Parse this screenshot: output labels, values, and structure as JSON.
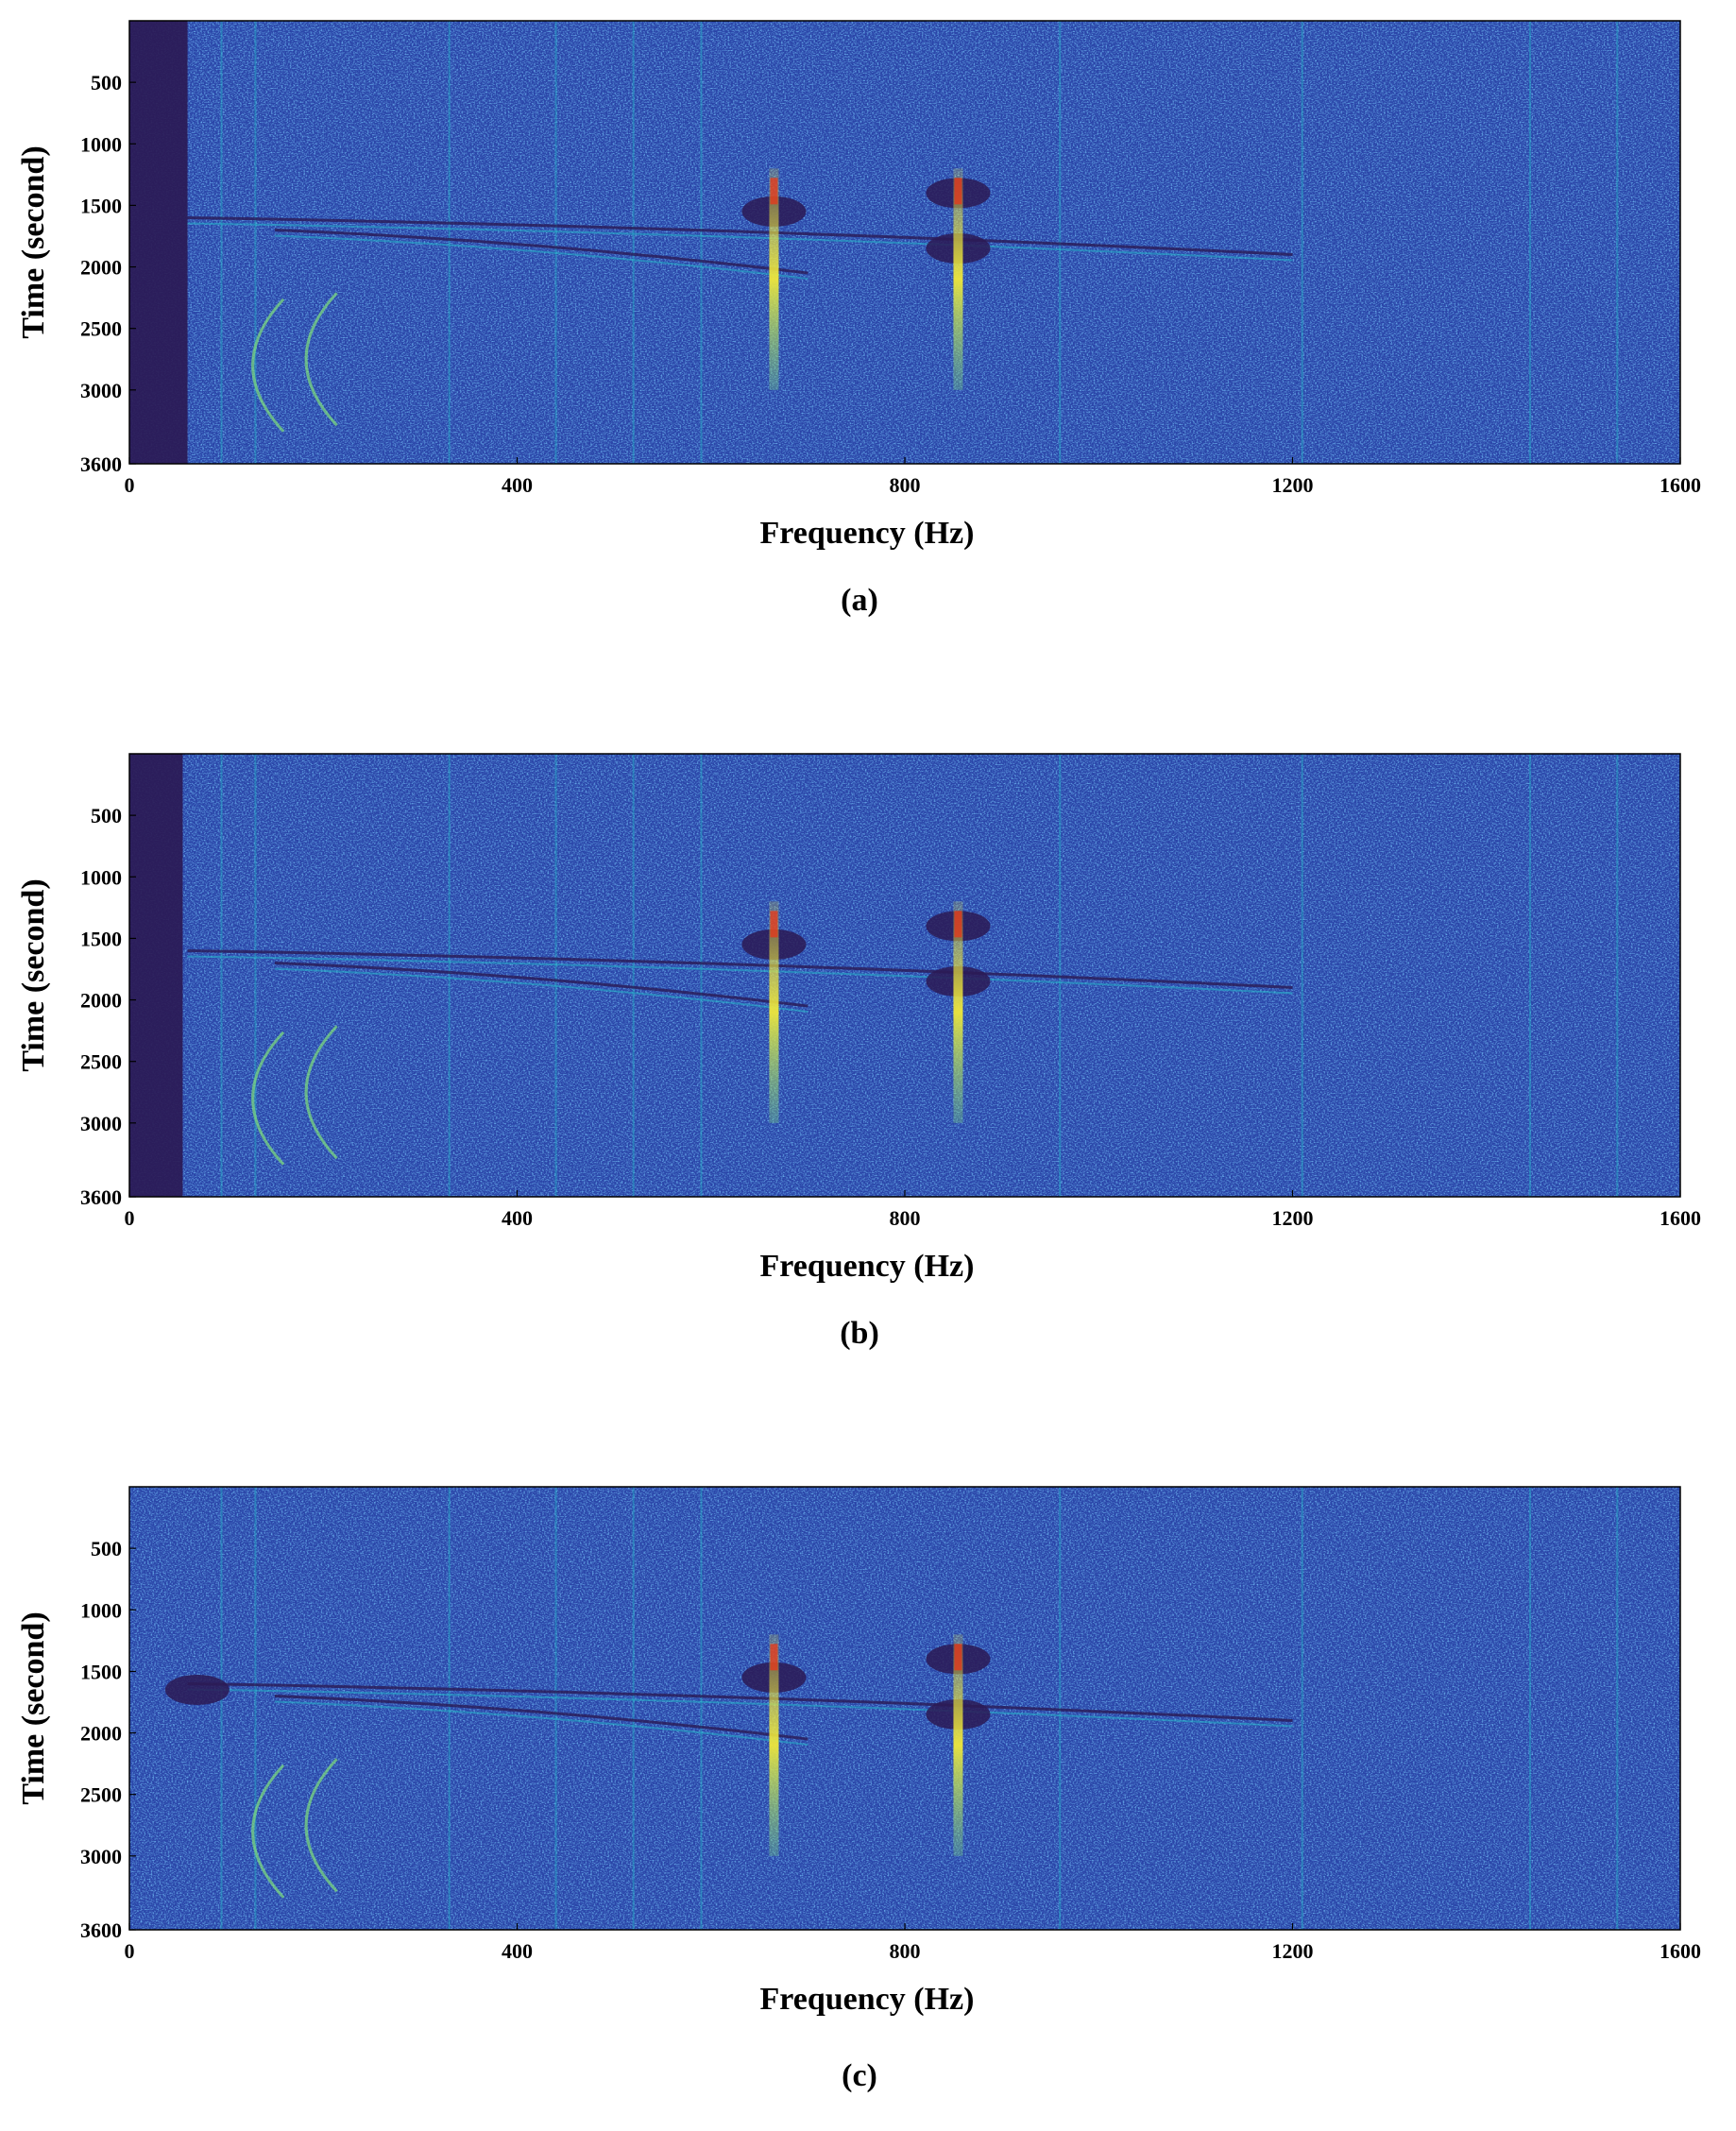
{
  "chart_data": [
    {
      "type": "heatmap",
      "panel_caption": "(a)",
      "xlabel": "Frequency (Hz)",
      "ylabel": "Time (second)",
      "xlim": [
        0,
        1600
      ],
      "ylim": [
        0,
        3600
      ],
      "y_inverted": true,
      "x_ticks": [
        0,
        400,
        800,
        1200,
        1600
      ],
      "y_ticks": [
        500,
        1000,
        1500,
        2000,
        2500,
        3000,
        3600
      ],
      "colormap": [
        "#2b1a55",
        "#2a45a8",
        "#2f6fd6",
        "#25b5c8",
        "#7fe07a",
        "#f0e83a",
        "#e33a1c"
      ],
      "low_frequency_dark_band_hz": [
        0,
        60
      ],
      "features": {
        "strong_lines_hz": [
          665,
          855
        ],
        "strong_line_time_range_s": [
          1200,
          3000
        ],
        "weak_lines_hz": [
          95,
          130,
          330,
          440,
          520,
          590,
          960,
          1210,
          1445,
          1535
        ],
        "dark_blobs": [
          {
            "hz": 665,
            "time_s": 1550
          },
          {
            "hz": 855,
            "time_s": 1400
          },
          {
            "hz": 855,
            "time_s": 1850
          }
        ],
        "chirp_tracks": [
          {
            "from_hz": 60,
            "from_time_s": 1600,
            "to_hz": 1200,
            "to_time_s": 1900
          },
          {
            "from_hz": 150,
            "from_time_s": 1700,
            "to_hz": 700,
            "to_time_s": 2050
          }
        ],
        "arcs": [
          {
            "center_hz": 120,
            "center_time_s": 2800
          },
          {
            "center_hz": 175,
            "center_time_s": 2750
          }
        ]
      }
    },
    {
      "type": "heatmap",
      "panel_caption": "(b)",
      "xlabel": "Frequency (Hz)",
      "ylabel": "Time (second)",
      "xlim": [
        0,
        1600
      ],
      "ylim": [
        0,
        3600
      ],
      "y_inverted": true,
      "x_ticks": [
        0,
        400,
        800,
        1200,
        1600
      ],
      "y_ticks": [
        500,
        1000,
        1500,
        2000,
        2500,
        3000,
        3600
      ],
      "colormap": [
        "#2b1a55",
        "#2a45a8",
        "#2f6fd6",
        "#25b5c8",
        "#7fe07a",
        "#f0e83a",
        "#e33a1c"
      ],
      "low_frequency_dark_band_hz": [
        0,
        55
      ],
      "features": {
        "strong_lines_hz": [
          665,
          855
        ],
        "strong_line_time_range_s": [
          1200,
          3000
        ],
        "weak_lines_hz": [
          95,
          130,
          330,
          440,
          520,
          590,
          960,
          1210,
          1445,
          1535
        ],
        "dark_blobs": [
          {
            "hz": 665,
            "time_s": 1550
          },
          {
            "hz": 855,
            "time_s": 1400
          },
          {
            "hz": 855,
            "time_s": 1850
          }
        ],
        "chirp_tracks": [
          {
            "from_hz": 60,
            "from_time_s": 1600,
            "to_hz": 1200,
            "to_time_s": 1900
          },
          {
            "from_hz": 150,
            "from_time_s": 1700,
            "to_hz": 700,
            "to_time_s": 2050
          }
        ],
        "arcs": [
          {
            "center_hz": 120,
            "center_time_s": 2800
          },
          {
            "center_hz": 175,
            "center_time_s": 2750
          }
        ]
      }
    },
    {
      "type": "heatmap",
      "panel_caption": "(c)",
      "xlabel": "Frequency (Hz)",
      "ylabel": "Time (second)",
      "xlim": [
        0,
        1600
      ],
      "ylim": [
        0,
        3600
      ],
      "y_inverted": true,
      "x_ticks": [
        0,
        400,
        800,
        1200,
        1600
      ],
      "y_ticks": [
        500,
        1000,
        1500,
        2000,
        2500,
        3000,
        3600
      ],
      "colormap": [
        "#2b1a55",
        "#2a45a8",
        "#2f6fd6",
        "#25b5c8",
        "#7fe07a",
        "#f0e83a",
        "#e33a1c"
      ],
      "low_frequency_dark_band_hz": [
        0,
        0
      ],
      "features": {
        "strong_lines_hz": [
          665,
          855
        ],
        "strong_line_time_range_s": [
          1200,
          3000
        ],
        "weak_lines_hz": [
          95,
          130,
          330,
          440,
          520,
          590,
          960,
          1210,
          1445,
          1535
        ],
        "dark_blobs": [
          {
            "hz": 665,
            "time_s": 1550
          },
          {
            "hz": 855,
            "time_s": 1400
          },
          {
            "hz": 855,
            "time_s": 1850
          },
          {
            "hz": 70,
            "time_s": 1650
          }
        ],
        "chirp_tracks": [
          {
            "from_hz": 60,
            "from_time_s": 1600,
            "to_hz": 1200,
            "to_time_s": 1900
          },
          {
            "from_hz": 150,
            "from_time_s": 1700,
            "to_hz": 700,
            "to_time_s": 2050
          }
        ],
        "arcs": [
          {
            "center_hz": 120,
            "center_time_s": 2800
          },
          {
            "center_hz": 175,
            "center_time_s": 2750
          }
        ]
      }
    }
  ]
}
